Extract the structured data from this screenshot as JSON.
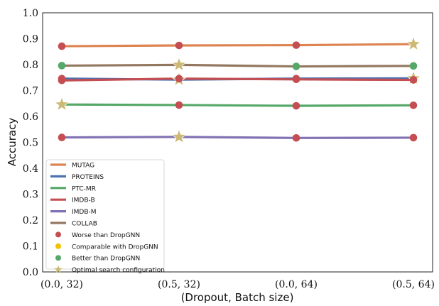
{
  "chart_data": {
    "type": "line",
    "title": "",
    "xlabel": "(Dropout, Batch size)",
    "ylabel": "Accuracy",
    "categories": [
      "(0.0, 32)",
      "(0.5, 32)",
      "(0.0, 64)",
      "(0.5, 64)"
    ],
    "ylim": [
      0.0,
      1.0
    ],
    "yticks": [
      "0.0",
      "0.1",
      "0.2",
      "0.3",
      "0.4",
      "0.5",
      "0.6",
      "0.7",
      "0.8",
      "0.9",
      "1.0"
    ],
    "grid": false,
    "legend_position": "lower-left",
    "series": [
      {
        "name": "MUTAG",
        "color": "#dd8452",
        "values": [
          0.871,
          0.874,
          0.875,
          0.879
        ],
        "markers": [
          "worse",
          "worse",
          "worse",
          "optimal"
        ]
      },
      {
        "name": "PROTEINS",
        "color": "#4c72b0",
        "values": [
          0.746,
          0.742,
          0.746,
          0.747
        ],
        "markers": [
          "worse",
          "optimal",
          "worse",
          "optimal"
        ]
      },
      {
        "name": "PTC-MR",
        "color": "#55a868",
        "values": [
          0.646,
          0.644,
          0.641,
          0.643
        ],
        "markers": [
          "optimal",
          "worse",
          "worse",
          "worse"
        ]
      },
      {
        "name": "IMDB-B",
        "color": "#c44e52",
        "values": [
          0.739,
          0.746,
          0.743,
          0.741
        ],
        "markers": [
          "worse",
          "worse",
          "worse",
          "worse"
        ]
      },
      {
        "name": "IMDB-M",
        "color": "#8172b3",
        "values": [
          0.519,
          0.521,
          0.517,
          0.518
        ],
        "markers": [
          "worse",
          "optimal",
          "worse",
          "worse"
        ]
      },
      {
        "name": "COLLAB",
        "color": "#937860",
        "values": [
          0.796,
          0.799,
          0.793,
          0.795
        ],
        "markers": [
          "better",
          "optimal",
          "better",
          "better"
        ]
      }
    ],
    "marker_legend": [
      {
        "key": "worse",
        "label": "Worse than DropGNN",
        "color": "#c44e52",
        "shape": "circle"
      },
      {
        "key": "comparable",
        "label": "Comparable with DropGNN",
        "color": "#f2c200",
        "shape": "circle"
      },
      {
        "key": "better",
        "label": "Better than DropGNN",
        "color": "#55a868",
        "shape": "circle"
      },
      {
        "key": "optimal",
        "label": "Optimal search configuration",
        "color": "#ccb974",
        "shape": "star"
      }
    ]
  }
}
